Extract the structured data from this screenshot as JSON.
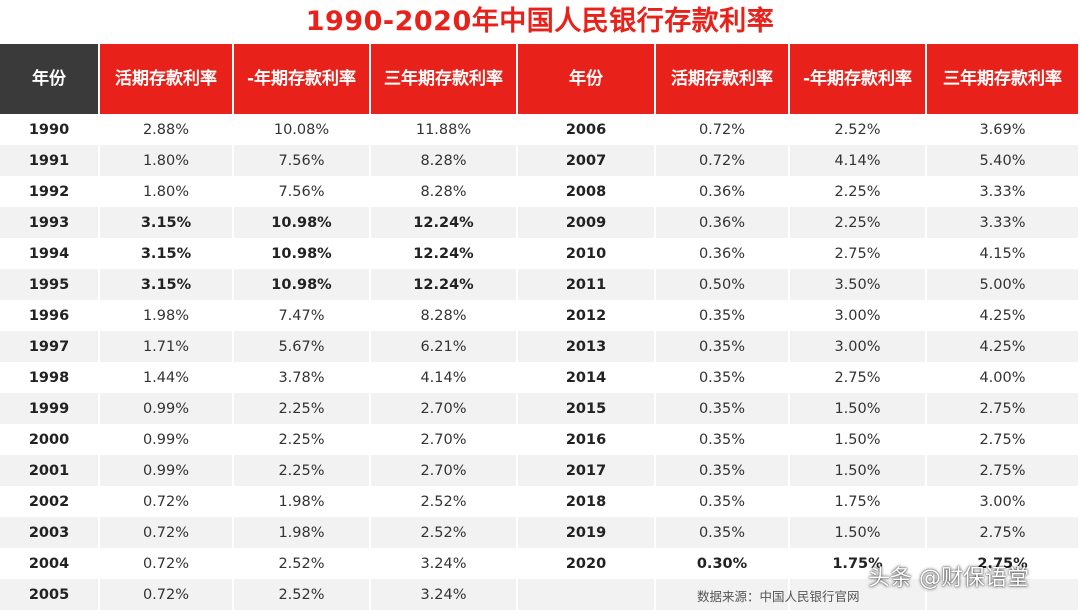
{
  "title": "1990-2020年中国人民银行存款利率",
  "headers": [
    "年份",
    "活期存款利率",
    "-年期存款利率",
    "三年期存款利率",
    "年份",
    "活期存款利率",
    "-年期存款利率",
    "三年期存款利率"
  ],
  "left_rows": [
    {
      "year": "1990",
      "demand": "2.88%",
      "one_year": "10.08%",
      "three_year": "11.88%",
      "bold": false
    },
    {
      "year": "1991",
      "demand": "1.80%",
      "one_year": "7.56%",
      "three_year": "8.28%",
      "bold": false
    },
    {
      "year": "1992",
      "demand": "1.80%",
      "one_year": "7.56%",
      "three_year": "8.28%",
      "bold": false
    },
    {
      "year": "1993",
      "demand": "3.15%",
      "one_year": "10.98%",
      "three_year": "12.24%",
      "bold": true
    },
    {
      "year": "1994",
      "demand": "3.15%",
      "one_year": "10.98%",
      "three_year": "12.24%",
      "bold": true
    },
    {
      "year": "1995",
      "demand": "3.15%",
      "one_year": "10.98%",
      "three_year": "12.24%",
      "bold": true
    },
    {
      "year": "1996",
      "demand": "1.98%",
      "one_year": "7.47%",
      "three_year": "8.28%",
      "bold": false
    },
    {
      "year": "1997",
      "demand": "1.71%",
      "one_year": "5.67%",
      "three_year": "6.21%",
      "bold": false
    },
    {
      "year": "1998",
      "demand": "1.44%",
      "one_year": "3.78%",
      "three_year": "4.14%",
      "bold": false
    },
    {
      "year": "1999",
      "demand": "0.99%",
      "one_year": "2.25%",
      "three_year": "2.70%",
      "bold": false
    },
    {
      "year": "2000",
      "demand": "0.99%",
      "one_year": "2.25%",
      "three_year": "2.70%",
      "bold": false
    },
    {
      "year": "2001",
      "demand": "0.99%",
      "one_year": "2.25%",
      "three_year": "2.70%",
      "bold": false
    },
    {
      "year": "2002",
      "demand": "0.72%",
      "one_year": "1.98%",
      "three_year": "2.52%",
      "bold": false
    },
    {
      "year": "2003",
      "demand": "0.72%",
      "one_year": "1.98%",
      "three_year": "2.52%",
      "bold": false
    },
    {
      "year": "2004",
      "demand": "0.72%",
      "one_year": "2.52%",
      "three_year": "3.24%",
      "bold": false
    },
    {
      "year": "2005",
      "demand": "0.72%",
      "one_year": "2.52%",
      "three_year": "3.24%",
      "bold": false
    }
  ],
  "right_rows": [
    {
      "year": "2006",
      "demand": "0.72%",
      "one_year": "2.52%",
      "three_year": "3.69%",
      "bold": false
    },
    {
      "year": "2007",
      "demand": "0.72%",
      "one_year": "4.14%",
      "three_year": "5.40%",
      "bold": false
    },
    {
      "year": "2008",
      "demand": "0.36%",
      "one_year": "2.25%",
      "three_year": "3.33%",
      "bold": false
    },
    {
      "year": "2009",
      "demand": "0.36%",
      "one_year": "2.25%",
      "three_year": "3.33%",
      "bold": false
    },
    {
      "year": "2010",
      "demand": "0.36%",
      "one_year": "2.75%",
      "three_year": "4.15%",
      "bold": false
    },
    {
      "year": "2011",
      "demand": "0.50%",
      "one_year": "3.50%",
      "three_year": "5.00%",
      "bold": false
    },
    {
      "year": "2012",
      "demand": "0.35%",
      "one_year": "3.00%",
      "three_year": "4.25%",
      "bold": false
    },
    {
      "year": "2013",
      "demand": "0.35%",
      "one_year": "3.00%",
      "three_year": "4.25%",
      "bold": false
    },
    {
      "year": "2014",
      "demand": "0.35%",
      "one_year": "2.75%",
      "three_year": "4.00%",
      "bold": false
    },
    {
      "year": "2015",
      "demand": "0.35%",
      "one_year": "1.50%",
      "three_year": "2.75%",
      "bold": false
    },
    {
      "year": "2016",
      "demand": "0.35%",
      "one_year": "1.50%",
      "three_year": "2.75%",
      "bold": false
    },
    {
      "year": "2017",
      "demand": "0.35%",
      "one_year": "1.50%",
      "three_year": "2.75%",
      "bold": false
    },
    {
      "year": "2018",
      "demand": "0.35%",
      "one_year": "1.75%",
      "three_year": "3.00%",
      "bold": false
    },
    {
      "year": "2019",
      "demand": "0.35%",
      "one_year": "1.50%",
      "three_year": "2.75%",
      "bold": false
    },
    {
      "year": "2020",
      "demand": "0.30%",
      "one_year": "1.75%",
      "three_year": "2.75%",
      "bold": true
    }
  ],
  "source_note": "数据来源：中国人民银行官网",
  "watermark": "头条 @财保语堂",
  "colors": {
    "header_red": "#e8221b",
    "header_dark": "#3a3a3a",
    "row_alt": "#f2f2f2",
    "title_red": "#e8221b"
  }
}
